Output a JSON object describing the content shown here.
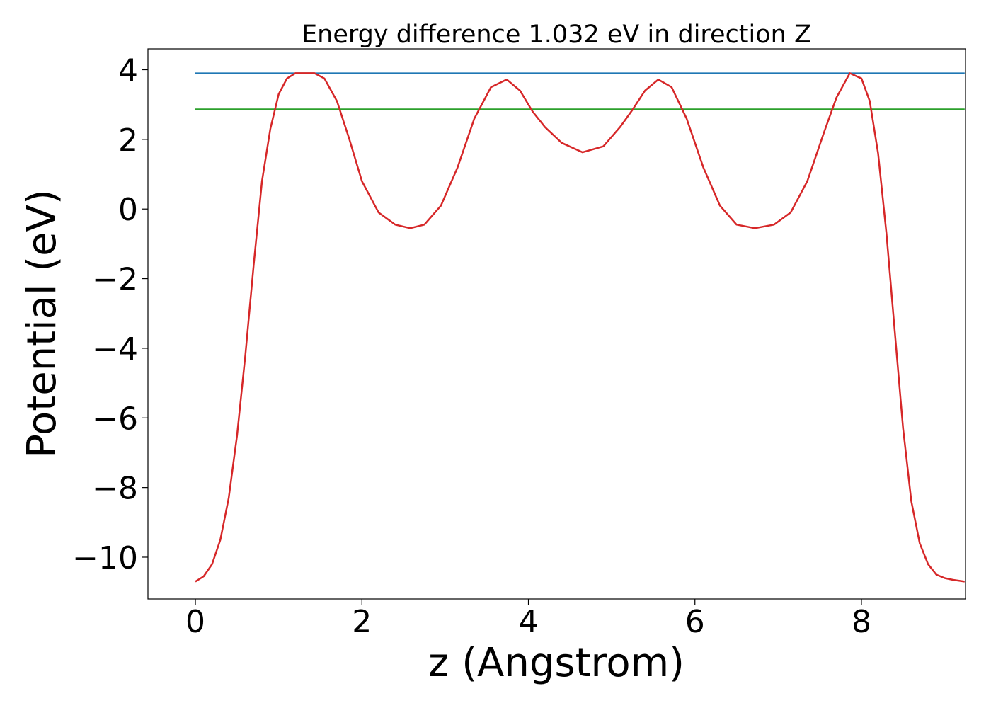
{
  "chart_data": {
    "type": "line",
    "title": "Energy difference 1.032 eV in direction Z",
    "xlabel": "z (Angstrom)",
    "ylabel": "Potential (eV)",
    "xlim": [
      -0.57,
      9.25
    ],
    "ylim": [
      -11.2,
      4.6
    ],
    "xticks": [
      0,
      2,
      4,
      6,
      8
    ],
    "yticks": [
      4,
      2,
      0,
      -2,
      -4,
      -6,
      -8,
      -10
    ],
    "xtick_labels": [
      "0",
      "2",
      "4",
      "6",
      "8"
    ],
    "ytick_labels": [
      "4",
      "2",
      "0",
      "−2",
      "−4",
      "−6",
      "−8",
      "−10"
    ],
    "grid": false,
    "series": [
      {
        "color": "#d62728",
        "x": [
          0.0,
          0.1,
          0.2,
          0.3,
          0.4,
          0.5,
          0.6,
          0.7,
          0.8,
          0.9,
          1.0,
          1.1,
          1.2,
          1.3,
          1.43,
          1.55,
          1.7,
          1.85,
          2.0,
          2.2,
          2.4,
          2.58,
          2.75,
          2.95,
          3.15,
          3.35,
          3.55,
          3.74,
          3.9,
          4.05,
          4.2,
          4.4,
          4.65,
          4.9,
          5.1,
          5.25,
          5.4,
          5.56,
          5.72,
          5.9,
          6.1,
          6.3,
          6.5,
          6.72,
          6.95,
          7.15,
          7.35,
          7.55,
          7.7,
          7.86,
          8.0,
          8.1,
          8.2,
          8.3,
          8.4,
          8.5,
          8.6,
          8.7,
          8.8,
          8.9,
          9.0,
          9.1,
          9.24
        ],
        "y": [
          -10.7,
          -10.55,
          -10.2,
          -9.5,
          -8.3,
          -6.5,
          -4.2,
          -1.6,
          0.8,
          2.3,
          3.3,
          3.75,
          3.9,
          3.9,
          3.9,
          3.75,
          3.1,
          2.0,
          0.8,
          -0.1,
          -0.45,
          -0.55,
          -0.45,
          0.1,
          1.2,
          2.6,
          3.5,
          3.72,
          3.4,
          2.8,
          2.35,
          1.9,
          1.63,
          1.8,
          2.35,
          2.85,
          3.4,
          3.72,
          3.5,
          2.6,
          1.2,
          0.1,
          -0.45,
          -0.55,
          -0.45,
          -0.1,
          0.8,
          2.2,
          3.2,
          3.9,
          3.75,
          3.1,
          1.6,
          -0.7,
          -3.5,
          -6.3,
          -8.4,
          -9.6,
          -10.2,
          -10.5,
          -10.6,
          -10.65,
          -10.7
        ]
      },
      {
        "color": "#1f77b4",
        "x": [
          0.0,
          9.24
        ],
        "y": [
          3.9,
          3.9
        ]
      },
      {
        "color": "#2ca02c",
        "x": [
          0.0,
          9.24
        ],
        "y": [
          2.868,
          2.868
        ]
      }
    ]
  }
}
